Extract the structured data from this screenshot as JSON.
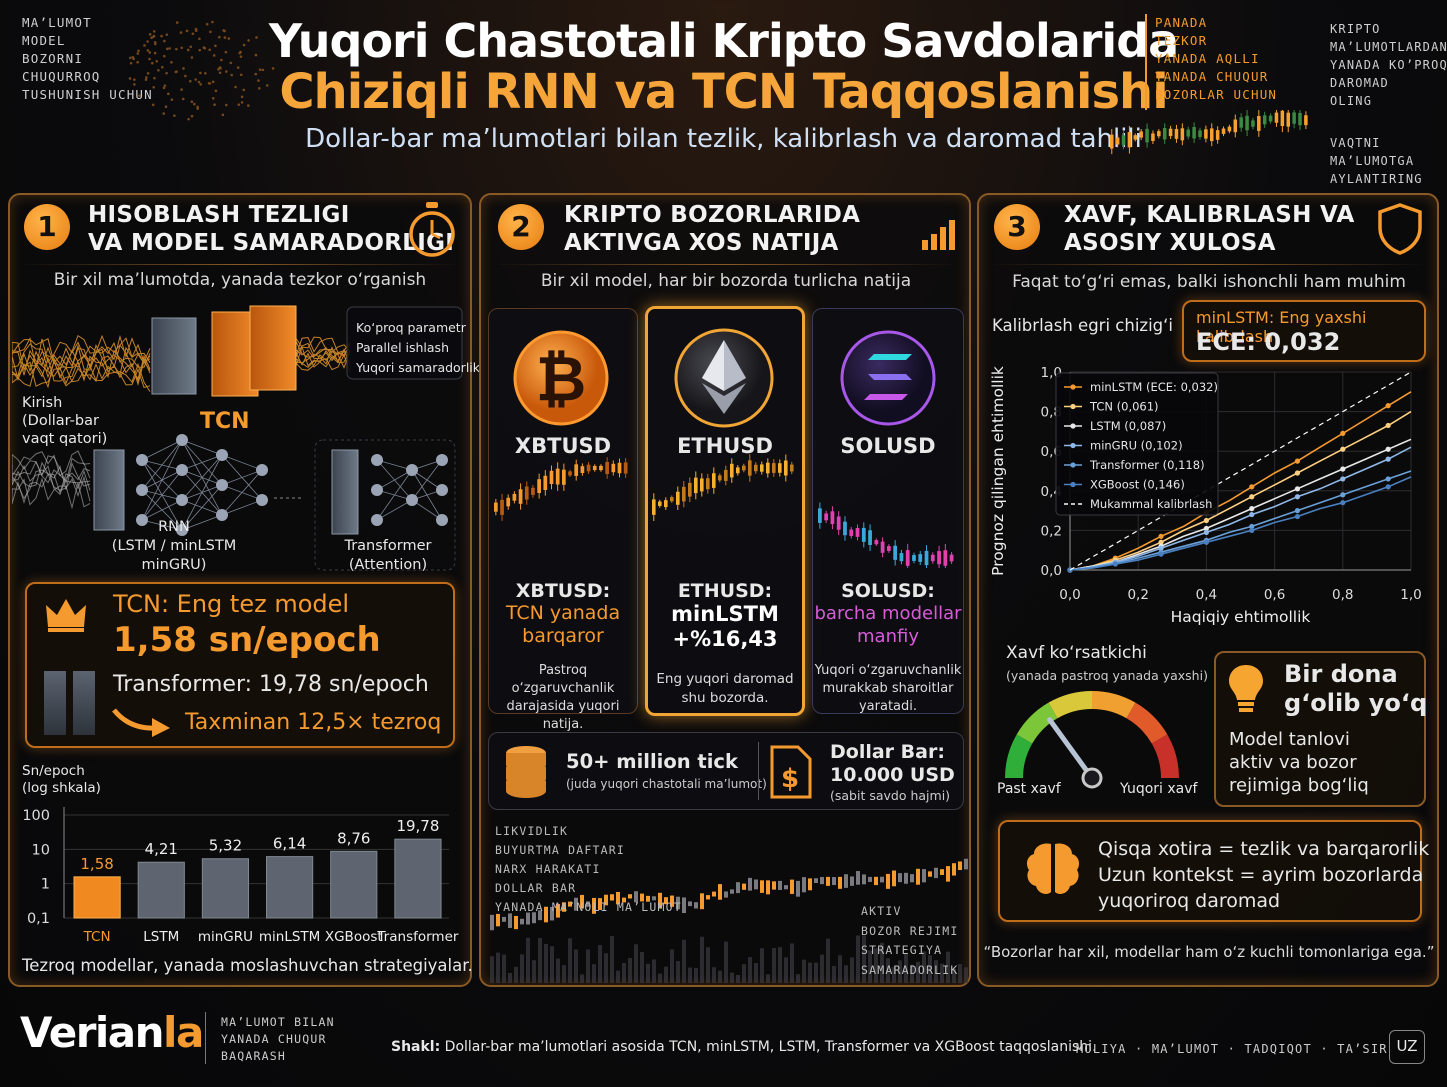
{
  "header": {
    "title_line1": "Yuqori Chastotali Kripto Savdolarida",
    "title_line2": "Chiziqli RNN va TCN Taqqoslanishi",
    "subtitle": "Dollar-bar ma’lumotlari bilan tezlik, kalibrlash va daromad tahlili",
    "corner_left": [
      "MA’LUMOT",
      "MODEL",
      "BOZORNI",
      "CHUQURROQ",
      "TUSHUNISH UCHUN"
    ],
    "corner_mid": [
      "PANADA",
      "TEZKOR",
      "YANADA AQLLI",
      "YANADA CHUQUR",
      "BOZORLAR UCHUN"
    ],
    "corner_right_top": [
      "KRIPTO",
      "MA’LUMOTLARDAN",
      "YANADA KO’PROQ",
      "DAROMAD",
      "OLING"
    ],
    "corner_right_bottom": [
      "VAQTNI",
      "MA’LUMOTGA",
      "AYLANTIRING"
    ]
  },
  "panel1": {
    "number": "1",
    "title_line1": "HISOBLASH TEZLIGI",
    "title_line2": "VA MODEL SAMARADORLIGI",
    "subtitle": "Bir xil ma’lumotda, yanada tezkor o‘rganish",
    "tcn_features": [
      "Ko‘proq parametr",
      "Parallel ishlash",
      "Yuqori samaradorlik"
    ],
    "tcn_label": "TCN",
    "input_label": "Kirish\n(Dollar-bar\nvaqt qatori)",
    "rnn_label": "RNN\n(LSTM / minLSTM\nminGRU)",
    "transformer_label": "Transformer\n(Attention)",
    "highlight_title": "TCN: Eng tez model",
    "highlight_value": "1,58 sn/epoch",
    "highlight_compare": "Transformer: 19,78 sn/epoch",
    "highlight_ratio": "Taxminan 12,5× tezroq",
    "chart_ylabel": "Sn/epoch\n(log shkala)",
    "footer": "Tezroq modellar, yanada moslashuvchan strategiyalar."
  },
  "panel2": {
    "number": "2",
    "title_line1": "KRIPTO BOZORLARIDA",
    "title_line2": "AKTIVGA XOS NATIJA",
    "subtitle": "Bir xil model, har bir bozorda turlicha natija",
    "markets": [
      {
        "ticker": "XBTUSD",
        "head": "XBTUSD:",
        "result": "TCN yanada\nbarqaror",
        "note": "Pastroq o‘zgaruvchanlik\ndarajasida yuqori\nnatija.",
        "color": "#f59a2e"
      },
      {
        "ticker": "ETHUSD",
        "head": "ETHUSD:",
        "result": "minLSTM\n+%16,43",
        "note": "Eng yuqori daromad\nshu bozorda.",
        "color": "#ffffff"
      },
      {
        "ticker": "SOLUSD",
        "head": "SOLUSD:",
        "result": "barcha modellar\nmanfiy",
        "note": "Yuqori o‘zgaruvchanlik\nmurakkab sharoitlar\nyaratadi.",
        "color": "#d85bd8"
      }
    ],
    "tick_title": "50+ million tick",
    "tick_sub": "(juda yuqori chastotali ma’lumot)",
    "bar_title": "Dollar Bar:\n10.000 USD",
    "bar_sub": "(sabit savdo hajmi)",
    "left_words": [
      "LIKVIDLIK",
      "BUYURTMA DAFTARI",
      "NARX HARAKATI",
      "DOLLAR BAR",
      "YANADA MA’NOLI MA’LUMOT"
    ],
    "right_words": [
      "AKTIV",
      "BOZOR REJIMI",
      "STRATEGIYA",
      "SAMARADORLIK"
    ]
  },
  "panel3": {
    "number": "3",
    "title_line1": "XAVF, KALIBRLASH VA",
    "title_line2": "ASOSIY XULOSA",
    "subtitle": "Faqat to‘g‘ri emas, balki ishonchli ham muhim",
    "calib_title": "Kalibrlash egri chizig‘i",
    "best_label": "minLSTM: Eng yaxshi kalibrlash",
    "best_value": "ECE: 0,032",
    "risk_title": "Xavf ko‘rsatkichi",
    "risk_sub": "(yanada pastroq yanada yaxshi)",
    "risk_low": "Past xavf",
    "risk_high": "Yuqori xavf",
    "risk_level": 0.3,
    "winner_title": "Bir dona\ng‘olib yo‘q",
    "winner_text": "Model tanlovi\naktiv va bozor\nrejimiga bog‘liq",
    "memory_text": "Qisqa xotira = tezlik va barqarorlik\nUzun kontekst = ayrim bozorlarda\nyuqoriroq daromad",
    "quote": "“Bozorlar har xil, modellar ham o‘z kuchli tomonlariga ega.”"
  },
  "footer": {
    "logo": "Verianla",
    "logo_sub": "MA’LUMOT BILAN\nYANADA CHUQUR\nBAQARASH",
    "caption_bold": "Shakl:",
    "caption": "Dollar-bar ma’lumotlari asosida TCN, minLSTM, LSTM, Transformer va XGBoost taqqoslanishi.",
    "tags": "MOLIYA · MA’LUMOT · TADQIQOT · TA’SIR",
    "lang": "UZ"
  },
  "chart_data": [
    {
      "type": "bar",
      "title": "",
      "ylabel": "Sn/epoch (log shkala)",
      "yscale": "log",
      "yticks": [
        "100",
        "10",
        "1",
        "0,1"
      ],
      "ylim": [
        0.1,
        100
      ],
      "categories": [
        "TCN",
        "LSTM",
        "minGRU",
        "minLSTM",
        "XGBoost",
        "Transformer"
      ],
      "values": [
        1.58,
        4.21,
        5.32,
        6.14,
        8.76,
        19.78
      ],
      "labels": [
        "1,58",
        "4,21",
        "5,32",
        "6,14",
        "8,76",
        "19,78"
      ],
      "highlight": "TCN"
    },
    {
      "type": "line",
      "title": "Kalibrlash egri chizig‘i",
      "xlabel": "Haqiqiy ehtimollik",
      "ylabel": "Prognoz qilingan ehtimollik",
      "xlim": [
        0,
        1
      ],
      "ylim": [
        0,
        1
      ],
      "xticks": [
        "0,0",
        "0,2",
        "0,4",
        "0,6",
        "0,8",
        "1,0"
      ],
      "yticks": [
        "0,0",
        "0,2",
        "0,4",
        "0,6",
        "0,8",
        "1,0"
      ],
      "x": [
        0,
        0.067,
        0.133,
        0.2,
        0.267,
        0.333,
        0.4,
        0.467,
        0.533,
        0.6,
        0.667,
        0.733,
        0.8,
        0.867,
        0.933,
        1.0
      ],
      "series": [
        {
          "name": "minLSTM (ECE: 0,032)",
          "color": "#f59a2e",
          "values": [
            0,
            0.02,
            0.06,
            0.11,
            0.17,
            0.22,
            0.29,
            0.35,
            0.42,
            0.49,
            0.55,
            0.62,
            0.69,
            0.76,
            0.83,
            0.9
          ]
        },
        {
          "name": "TCN (0,061)",
          "color": "#ffd080",
          "values": [
            0,
            0.02,
            0.05,
            0.09,
            0.14,
            0.2,
            0.25,
            0.31,
            0.37,
            0.43,
            0.49,
            0.55,
            0.61,
            0.67,
            0.73,
            0.8
          ]
        },
        {
          "name": "LSTM (0,087)",
          "color": "#e8e8e8",
          "values": [
            0,
            0.02,
            0.04,
            0.08,
            0.12,
            0.17,
            0.21,
            0.26,
            0.31,
            0.36,
            0.41,
            0.46,
            0.51,
            0.56,
            0.61,
            0.66
          ]
        },
        {
          "name": "minGRU (0,102)",
          "color": "#8fb8e8",
          "values": [
            0,
            0.015,
            0.04,
            0.07,
            0.11,
            0.15,
            0.19,
            0.23,
            0.28,
            0.32,
            0.37,
            0.41,
            0.46,
            0.51,
            0.56,
            0.62
          ]
        },
        {
          "name": "Transformer (0,118)",
          "color": "#6aa0d8",
          "values": [
            0,
            0.015,
            0.035,
            0.06,
            0.09,
            0.12,
            0.15,
            0.19,
            0.22,
            0.26,
            0.3,
            0.34,
            0.38,
            0.42,
            0.46,
            0.5
          ]
        },
        {
          "name": "XGBoost (0,146)",
          "color": "#4a80c0",
          "values": [
            0,
            0.01,
            0.03,
            0.05,
            0.08,
            0.11,
            0.14,
            0.17,
            0.2,
            0.24,
            0.27,
            0.31,
            0.34,
            0.38,
            0.42,
            0.47
          ]
        },
        {
          "name": "Mukammal kalibrlash",
          "color": "#ffffff",
          "dashed": true,
          "values": [
            0,
            0.067,
            0.133,
            0.2,
            0.267,
            0.333,
            0.4,
            0.467,
            0.533,
            0.6,
            0.667,
            0.733,
            0.8,
            0.867,
            0.933,
            1.0
          ]
        }
      ]
    }
  ]
}
